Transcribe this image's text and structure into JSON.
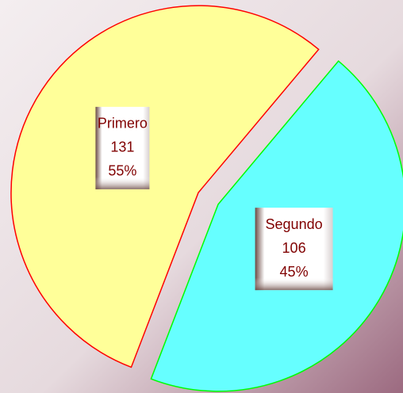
{
  "chart_data": {
    "type": "pie",
    "categories": [
      "Primero",
      "Segundo"
    ],
    "values": [
      131,
      106
    ],
    "percent_labels": [
      "55%",
      "45%"
    ],
    "colors": [
      "#ffff99",
      "#66ffff"
    ],
    "stroke_colors": [
      "#ff0000",
      "#00ff00"
    ]
  }
}
